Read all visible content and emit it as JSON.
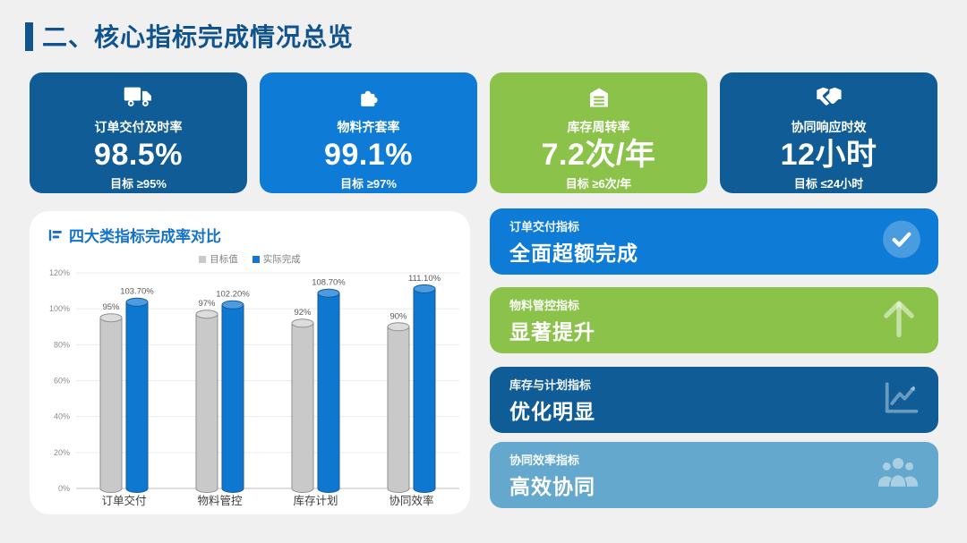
{
  "slide": {
    "title": "二、核心指标完成情况总览"
  },
  "colors": {
    "dark_blue": "#11538C",
    "card_dark_blue": "#0F5C96",
    "bright_blue": "#0E7BD6",
    "green": "#8BC34A",
    "steel_blue": "#64A8CD",
    "panel_bg": "#FFFFFF",
    "slide_bg": "#F0F0F0",
    "chart_title_blue": "#1472C8"
  },
  "kpi_cards": [
    {
      "icon": "truck-icon",
      "label": "订单交付及时率",
      "value": "98.5%",
      "target": "目标 ≥95%",
      "color": "#0F5C96"
    },
    {
      "icon": "puzzle-icon",
      "label": "物料齐套率",
      "value": "99.1%",
      "target": "目标 ≥97%",
      "color": "#0E7BD6"
    },
    {
      "icon": "warehouse-icon",
      "label": "库存周转率",
      "value": "7.2次/年",
      "target": "目标 ≥6次/年",
      "color": "#8BC34A"
    },
    {
      "icon": "handshake-icon",
      "label": "协同响应时效",
      "value": "12小时",
      "target": "目标 ≤24小时",
      "color": "#0F5C96"
    }
  ],
  "chart_panel": {
    "title": "四大类指标完成率对比"
  },
  "chart_data": {
    "type": "bar",
    "title": "四大类指标完成率对比",
    "bar_style": "cylinder",
    "categories": [
      "订单交付",
      "物料管控",
      "库存计划",
      "协同效率"
    ],
    "series": [
      {
        "name": "目标值",
        "values": [
          95,
          97,
          92,
          90
        ],
        "labels": [
          "95%",
          "97%",
          "92%",
          "90%"
        ],
        "color": "#C9C9C9",
        "top_color": "#DCDCDC",
        "outline": "#8F8F8F"
      },
      {
        "name": "实际完成",
        "values": [
          103.7,
          102.2,
          108.7,
          111.1
        ],
        "labels": [
          "103.70%",
          "102.20%",
          "108.70%",
          "111.10%"
        ],
        "color": "#0E78D1",
        "top_color": "#4D9BE0",
        "outline": "#155A96"
      }
    ],
    "xlabel": "",
    "ylabel": "",
    "ylim": [
      0,
      120
    ],
    "ytick_step": 20,
    "ytick_labels": [
      "0%",
      "20%",
      "40%",
      "60%",
      "80%",
      "100%",
      "120%"
    ],
    "grid": true,
    "legend_position": "top"
  },
  "status_cards": [
    {
      "icon": "check-circle-icon",
      "category": "订单交付指标",
      "headline": "全面超额完成",
      "color": "#0E7BD6"
    },
    {
      "icon": "arrow-up-icon",
      "category": "物料管控指标",
      "headline": "显著提升",
      "color": "#8BC34A"
    },
    {
      "icon": "trend-chart-icon",
      "category": "库存与计划指标",
      "headline": "优化明显",
      "color": "#0F5C96"
    },
    {
      "icon": "people-icon",
      "category": "协同效率指标",
      "headline": "高效协同",
      "color": "#64A8CD"
    }
  ]
}
